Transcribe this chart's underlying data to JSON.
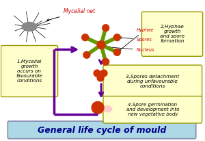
{
  "title": "General life cycle of mould",
  "title_bg": "#add8e6",
  "title_color": "#00008b",
  "title_fontsize": 9,
  "bg_color": "#ffffff",
  "box1_text": "1.Mycelial\ngrowth\noccurs on\nfavourable\nconditions",
  "box2_text": "2.Hyphae\ngrowth\nand spore\nformation",
  "box3_text": "3.Spores detachment\nduring unfavourable\nconditions",
  "box4_text": "4.Spore germination\nand development into\nnew vegetative body",
  "box_bg": "#ffffcc",
  "box_edge": "#999900",
  "mycelial_label": "Mycelial net",
  "hyphae_label": "Hyphae",
  "spores_label": "Spores",
  "nucleus_label": "Nucleus",
  "label_color": "#cc0000",
  "arrow_color": "#660099",
  "spore_color": "#cc3300",
  "hyphae_color": "#669900",
  "nucleus_color": "#cc3300",
  "germination_body_color": "#ffcccc"
}
